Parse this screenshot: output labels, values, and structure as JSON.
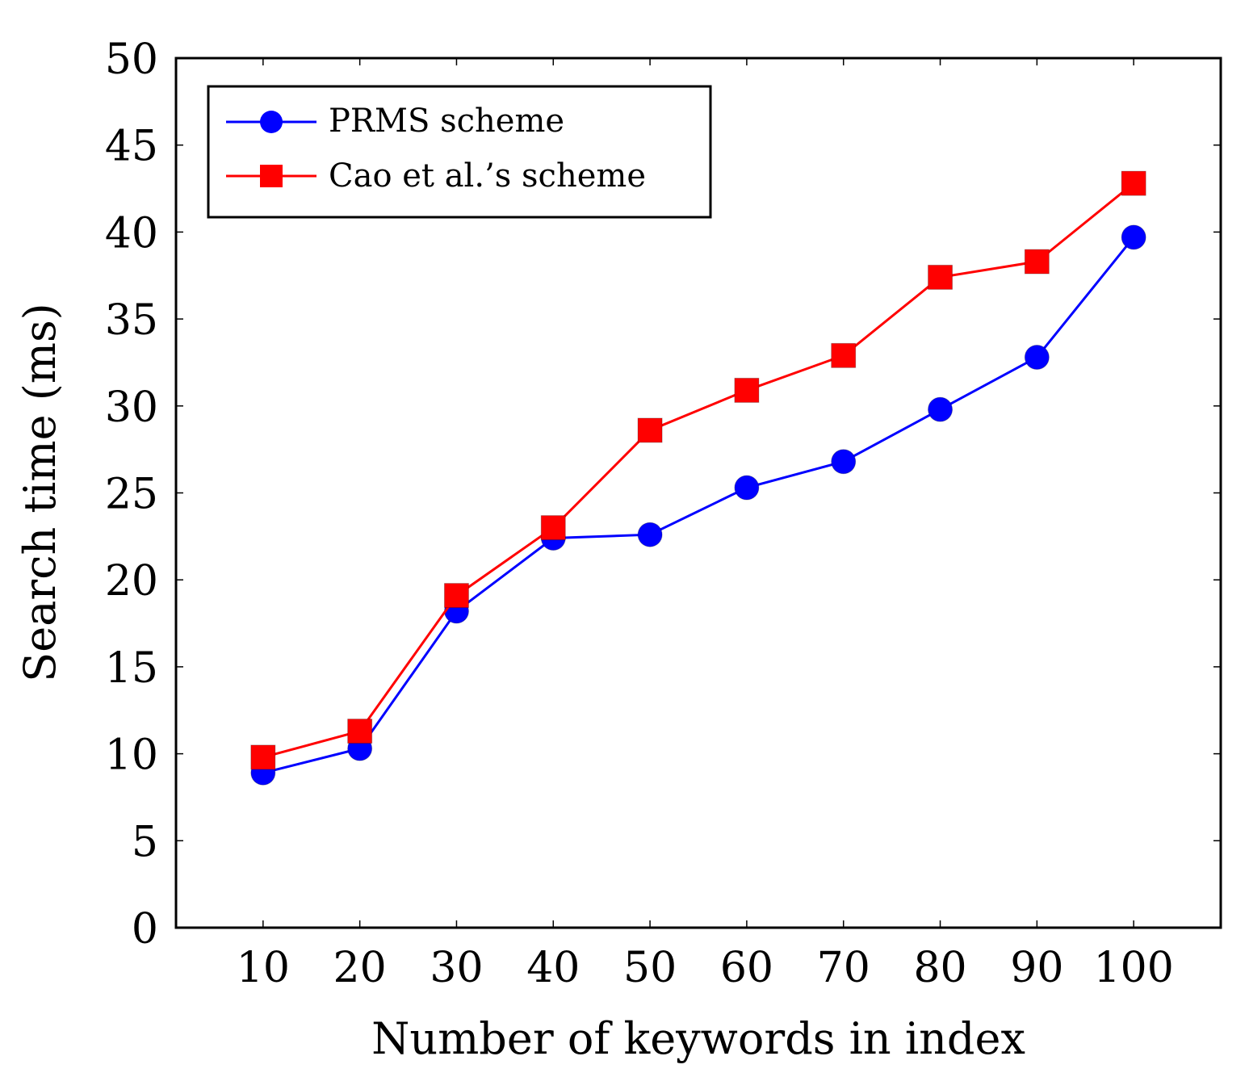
{
  "chart_data": {
    "type": "line",
    "title": "",
    "xlabel": "Number of keywords in index",
    "ylabel": "Search time (ms)",
    "x": [
      10,
      20,
      30,
      40,
      50,
      60,
      70,
      80,
      90,
      100
    ],
    "xlim": [
      1,
      109
    ],
    "ylim": [
      0,
      50
    ],
    "yticks": [
      0,
      5,
      10,
      15,
      20,
      25,
      30,
      35,
      40,
      45,
      50
    ],
    "xtick_labels": [
      "10",
      "20",
      "30",
      "40",
      "50",
      "60",
      "70",
      "80",
      "90",
      "100"
    ],
    "ytick_labels": [
      "0",
      "5",
      "10",
      "15",
      "20",
      "25",
      "30",
      "35",
      "40",
      "45",
      "50"
    ],
    "legend_position": "top-left",
    "grid": false,
    "series": [
      {
        "name": "PRMS scheme",
        "color": "#0000ff",
        "marker": "circle",
        "values": [
          8.9,
          10.3,
          18.2,
          22.4,
          22.6,
          25.3,
          26.8,
          29.8,
          32.8,
          39.7
        ]
      },
      {
        "name": "Cao et al.’s scheme",
        "color": "#ff0000",
        "marker": "square",
        "values": [
          9.8,
          11.3,
          19.1,
          23.0,
          28.6,
          30.9,
          32.9,
          37.4,
          38.3,
          42.8
        ]
      }
    ]
  }
}
